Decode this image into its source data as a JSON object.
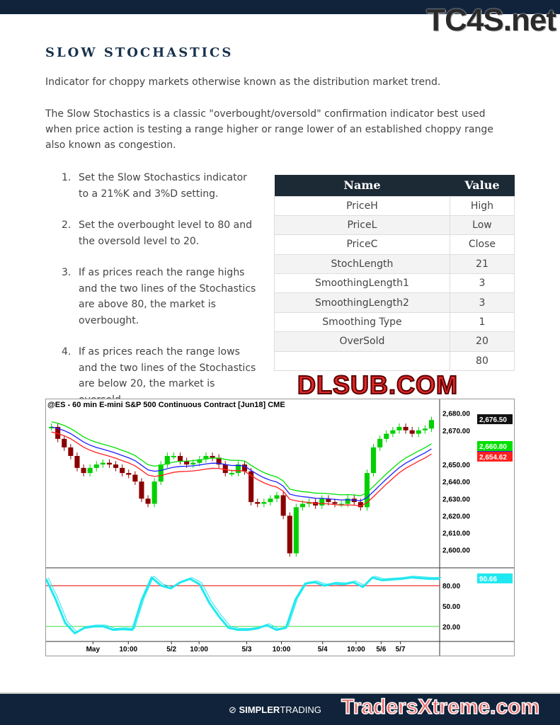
{
  "header": {
    "watermark": "TC4S.net"
  },
  "title": "SLOW STOCHASTICS",
  "intro": "Indicator for choppy markets otherwise known as the distribution market trend.",
  "description": "The Slow Stochastics is a classic \"overbought/oversold\" confirmation indicator best used when price action is testing a range higher or range lower of an established choppy range also known as congestion.",
  "steps": [
    {
      "n": "1.",
      "text": "Set the Slow Stochastics indicator to a 21%K and 3%D setting."
    },
    {
      "n": "2.",
      "text": "Set the overbought level to 80 and the oversold level to 20."
    },
    {
      "n": "3.",
      "text": "If as prices reach the range highs and the two lines of the Stochastics are above 80, the market is overbought."
    },
    {
      "n": "4.",
      "text": "If as prices reach the range lows and the two lines of the Stochastics are below 20, the market is oversold."
    }
  ],
  "table": {
    "headers": [
      "Name",
      "Value"
    ],
    "rows": [
      [
        "PriceH",
        "High"
      ],
      [
        "PriceL",
        "Low"
      ],
      [
        "PriceC",
        "Close"
      ],
      [
        "StochLength",
        "21"
      ],
      [
        "SmoothingLength1",
        "3"
      ],
      [
        "SmoothingLength2",
        "3"
      ],
      [
        "Smoothing Type",
        "1"
      ],
      [
        "OverSold",
        "20"
      ],
      [
        "",
        "80"
      ]
    ]
  },
  "watermark_mid": "DLSUB.COM",
  "chart_data": {
    "type": "line",
    "title": "@ES - 60 min  E-mini S&P 500 Continuous Contract [Jun18]  CME",
    "price_ticks": [
      "2,680.00",
      "2,670.00",
      "2,650.00",
      "2,640.00",
      "2,630.00",
      "2,620.00",
      "2,610.00",
      "2,600.00"
    ],
    "price_ylim": [
      2592,
      2684
    ],
    "stoch_ticks": [
      "80.00",
      "50.00",
      "20.00"
    ],
    "stoch_ylim": [
      0,
      100
    ],
    "x_labels": [
      "May",
      "10:00",
      "5/2",
      "10:00",
      "5/3",
      "10:00",
      "5/4",
      "10:00",
      "5/6",
      "5/7"
    ],
    "readouts": {
      "last": "2,676.50",
      "upper": "2,660.80",
      "lower": "2,654.62",
      "stoch": "90.66"
    },
    "closes": [
      2672,
      2665,
      2660,
      2655,
      2648,
      2645,
      2648,
      2650,
      2651,
      2650,
      2648,
      2645,
      2644,
      2640,
      2630,
      2627,
      2640,
      2650,
      2655,
      2655,
      2652,
      2650,
      2651,
      2653,
      2655,
      2654,
      2650,
      2645,
      2645,
      2650,
      2646,
      2628,
      2627,
      2628,
      2630,
      2632,
      2620,
      2598,
      2625,
      2627,
      2628,
      2626,
      2630,
      2628,
      2627,
      2627,
      2630,
      2628,
      2625,
      2645,
      2660,
      2665,
      2668,
      2670,
      2672,
      2670,
      2668,
      2670,
      2671,
      2676
    ],
    "stoch": [
      90,
      60,
      25,
      10,
      18,
      20,
      20,
      15,
      16,
      15,
      60,
      92,
      80,
      76,
      85,
      90,
      82,
      55,
      35,
      18,
      15,
      15,
      17,
      22,
      15,
      18,
      60,
      83,
      85,
      80,
      83,
      82,
      85,
      78,
      92,
      88,
      89,
      90,
      92,
      91,
      90,
      90
    ],
    "overbought": 80,
    "oversold": 20,
    "colors": {
      "upper": "#00e000",
      "mid": "#2020ff",
      "lower": "#ff2020",
      "stoch": "#20e8f0",
      "up": "#00d000",
      "down": "#8b0000"
    }
  },
  "footer": {
    "brand_bold": "SIMPLER",
    "brand_light": "TRADING",
    "watermark": "TradersXtreme.com"
  }
}
